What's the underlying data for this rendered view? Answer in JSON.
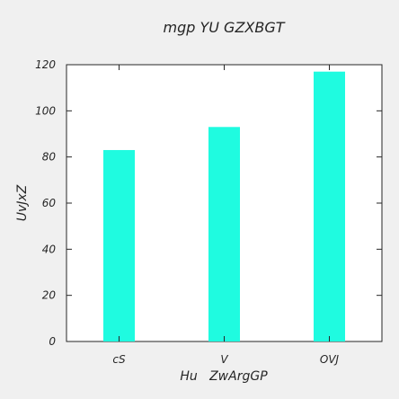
{
  "chart_data": {
    "type": "bar",
    "title": "mgp YU GZXBGT",
    "xlabel": "Hu   ZwArgGP",
    "ylabel": "UvJxZ",
    "categories": [
      "cS",
      "V",
      "OVJ"
    ],
    "values": [
      83,
      93,
      117
    ],
    "ylim": [
      0,
      120
    ],
    "yticks": [
      0,
      20,
      40,
      60,
      80,
      100,
      120
    ],
    "bar_color": "#1ffbe0",
    "grid": false,
    "legend": "none"
  }
}
